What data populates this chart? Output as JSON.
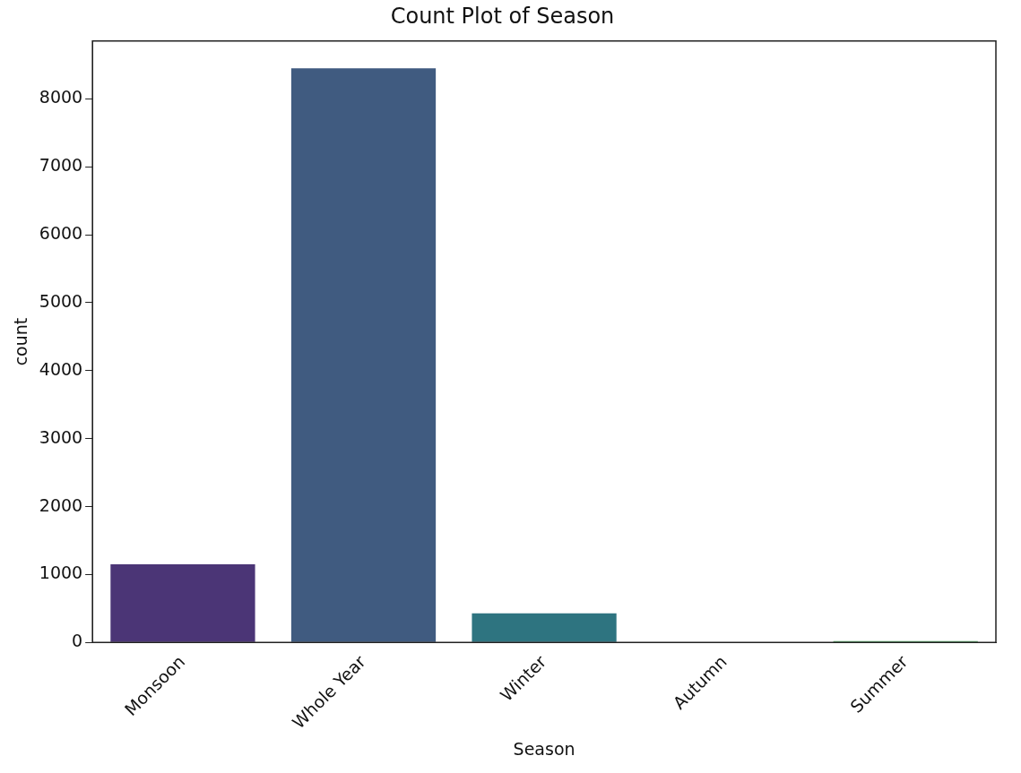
{
  "chart_data": {
    "type": "bar",
    "title": "Count Plot of Season",
    "xlabel": "Season",
    "ylabel": "count",
    "categories": [
      "Monsoon",
      "Whole Year",
      "Winter",
      "Autumn",
      "Summer"
    ],
    "values": [
      1150,
      8450,
      430,
      0,
      20
    ],
    "colors": [
      "#4b3576",
      "#405b80",
      "#2e7480",
      "#288d6a",
      "#3a9a4c"
    ],
    "ylim": [
      0,
      8850
    ],
    "yticks": [
      0,
      1000,
      2000,
      3000,
      4000,
      5000,
      6000,
      7000,
      8000
    ],
    "grid": false,
    "legend": false
  }
}
